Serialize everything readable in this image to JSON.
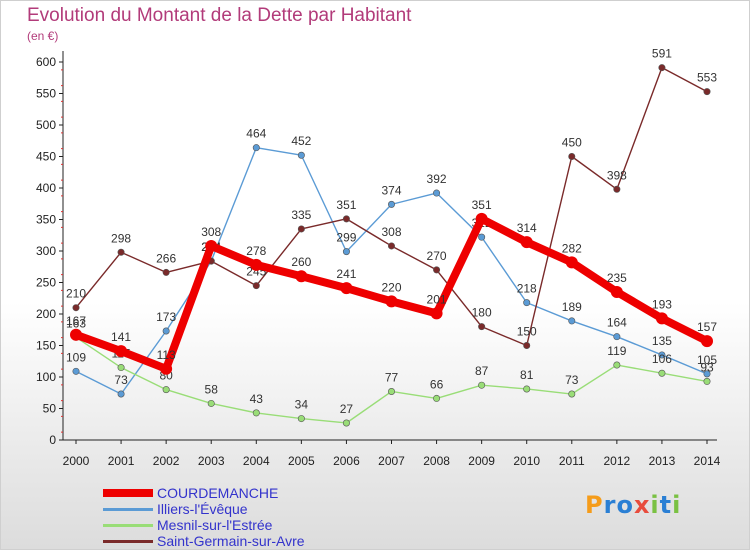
{
  "header": {
    "title": "Evolution du Montant de la Dette par Habitant",
    "subtitle": "(en €)"
  },
  "logo": {
    "text": "Proxiti"
  },
  "chart_data": {
    "type": "line",
    "title": "Evolution du Montant de la Dette par Habitant",
    "subtitle": "(en €)",
    "x": [
      "2000",
      "2001",
      "2002",
      "2003",
      "2004",
      "2005",
      "2006",
      "2007",
      "2008",
      "2009",
      "2010",
      "2011",
      "2012",
      "2013",
      "2014"
    ],
    "ylim": [
      0,
      600
    ],
    "yticks": [
      0,
      50,
      100,
      150,
      200,
      250,
      300,
      350,
      400,
      450,
      500,
      550,
      600
    ],
    "grid": false,
    "legend": "bottom-left",
    "series": [
      {
        "name": "COURDEMANCHE",
        "color": "#ee0000",
        "legend_text_color": "#3333cc",
        "emphasis": true,
        "values": [
          167,
          141,
          113,
          308,
          278,
          260,
          241,
          220,
          201,
          351,
          314,
          282,
          235,
          193,
          157
        ]
      },
      {
        "name": "Illiers-l'Évêque",
        "color": "#5b9bd5",
        "legend_text_color": "#3333cc",
        "emphasis": false,
        "values": [
          109,
          73,
          173,
          284,
          464,
          452,
          299,
          374,
          392,
          322,
          218,
          189,
          164,
          135,
          105
        ]
      },
      {
        "name": "Mesnil-sur-l'Estrée",
        "color": "#99dd77",
        "legend_text_color": "#3333cc",
        "emphasis": false,
        "values": [
          163,
          115,
          80,
          58,
          43,
          34,
          27,
          77,
          66,
          87,
          81,
          73,
          119,
          106,
          93
        ]
      },
      {
        "name": "Saint-Germain-sur-Avre",
        "color": "#7a2a2a",
        "legend_text_color": "#3333cc",
        "emphasis": false,
        "values": [
          210,
          298,
          266,
          284,
          245,
          335,
          351,
          308,
          270,
          180,
          150,
          450,
          398,
          591,
          553
        ]
      }
    ]
  }
}
